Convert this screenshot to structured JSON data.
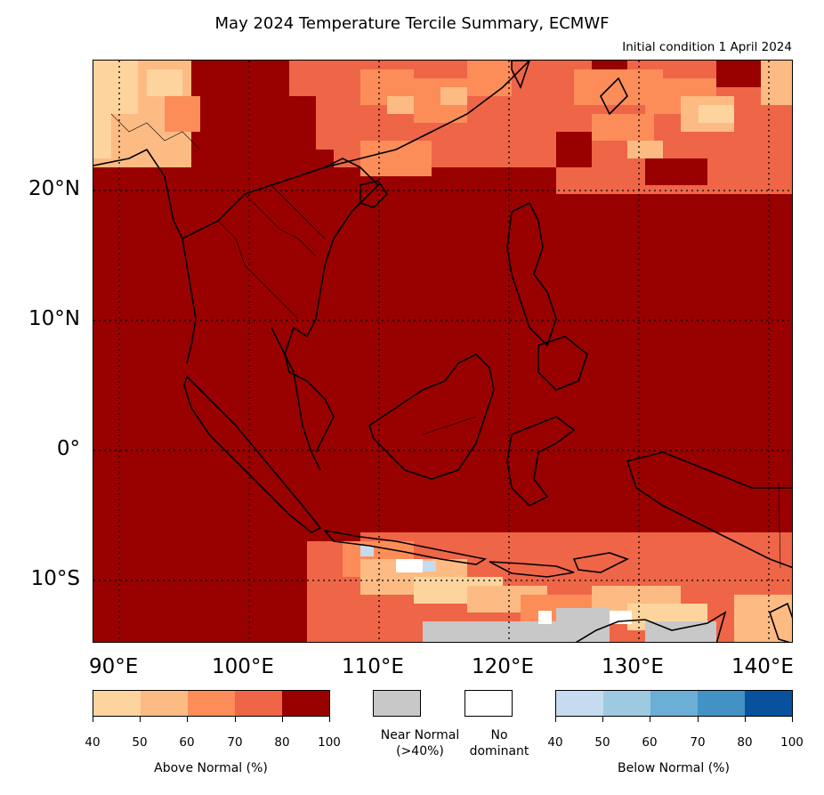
{
  "title": "May 2024 Temperature Tercile Summary, ECMWF",
  "subtitle": "Initial condition 1 April 2024",
  "map": {
    "lat_labels": [
      "20°N",
      "10°N",
      "0°",
      "10°S"
    ],
    "lon_labels": [
      "90°E",
      "100°E",
      "110°E",
      "120°E",
      "130°E",
      "140°E"
    ],
    "colors": {
      "above_40": "#fdd49e",
      "above_50": "#fdbb84",
      "above_60": "#fc8d59",
      "above_70": "#ef6548",
      "above_80": "#990000",
      "near_normal": "#c8c8c8",
      "no_dominant": "#ffffff",
      "below_40": "#c6dbef",
      "below_50": "#9ecae1",
      "below_60": "#6baed6",
      "below_70": "#4292c6",
      "below_80": "#08519c"
    }
  },
  "legend": {
    "above": {
      "title": "Above Normal (%)",
      "ticks": [
        "40",
        "50",
        "60",
        "70",
        "80",
        "100"
      ],
      "colors": [
        "#fdd49e",
        "#fdbb84",
        "#fc8d59",
        "#ef6548",
        "#990000"
      ]
    },
    "near_normal": {
      "line1": "Near Normal",
      "line2": "(>40%)",
      "color": "#c8c8c8"
    },
    "no_dominant": {
      "line1": "No",
      "line2": "dominant",
      "color": "#ffffff"
    },
    "below": {
      "title": "Below Normal (%)",
      "ticks": [
        "40",
        "50",
        "60",
        "70",
        "80",
        "100"
      ],
      "colors": [
        "#c6dbef",
        "#9ecae1",
        "#6baed6",
        "#4292c6",
        "#08519c"
      ]
    }
  }
}
